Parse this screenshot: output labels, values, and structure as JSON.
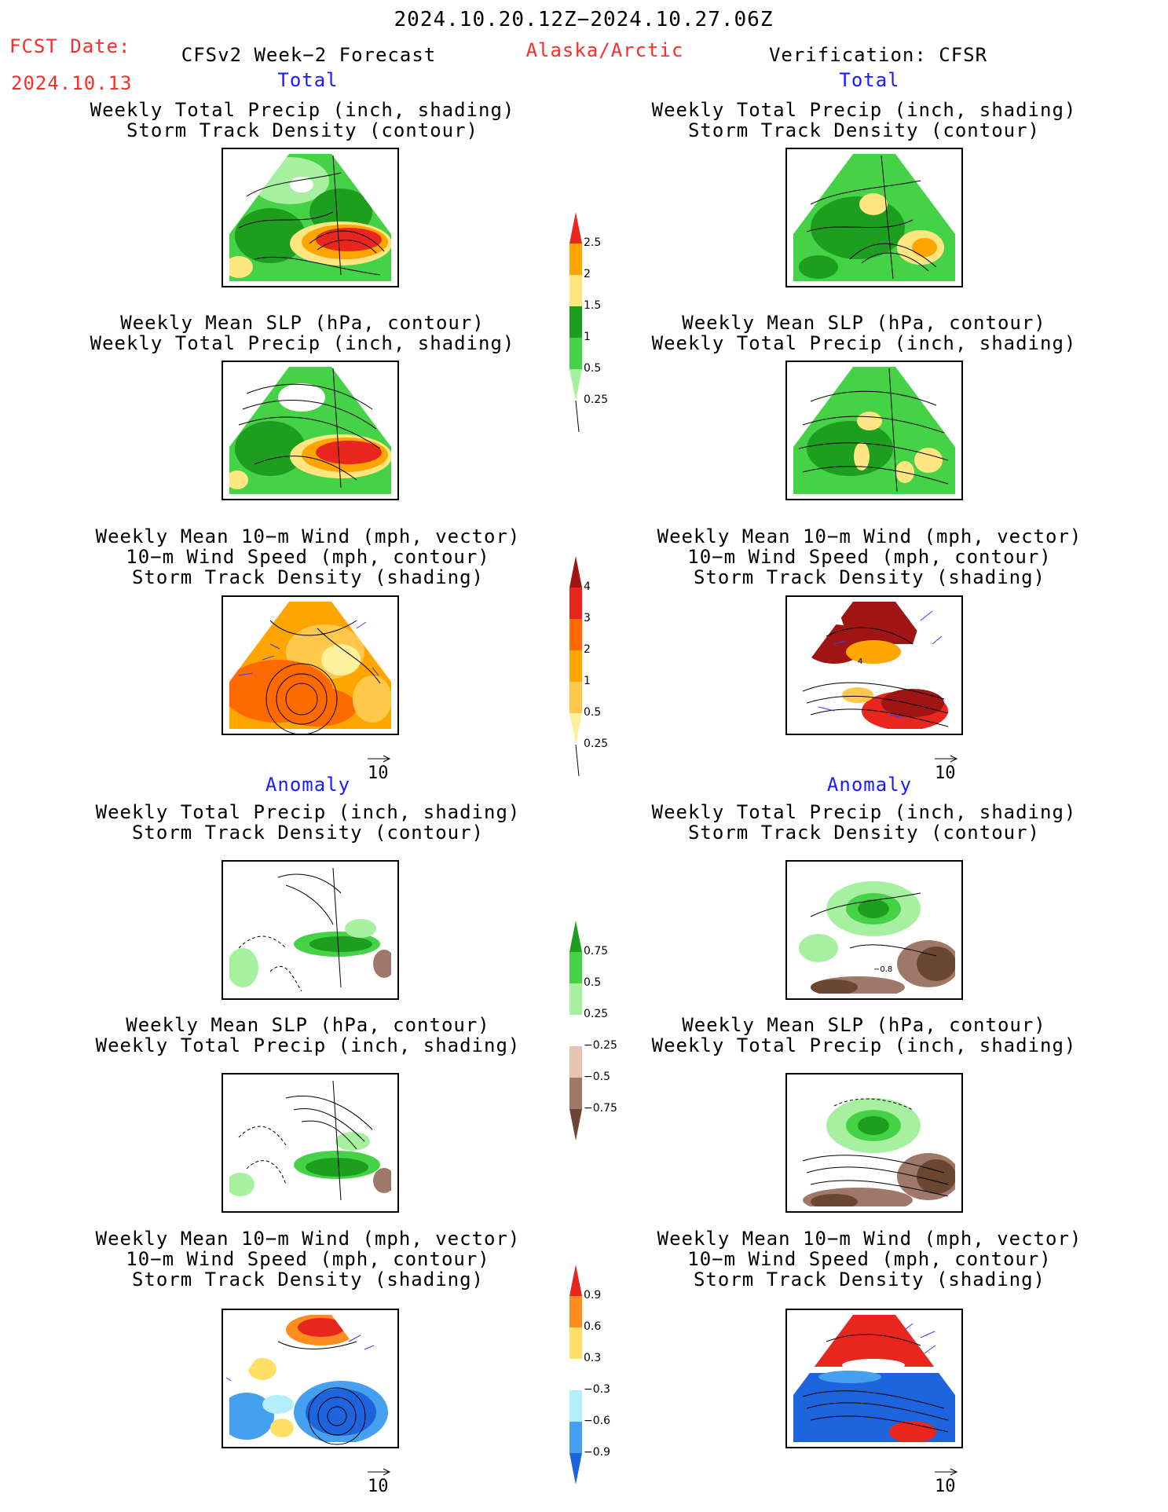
{
  "header": {
    "date_range": "2024.10.20.12Z−2024.10.27.06Z",
    "fcst_label": "FCST Date:",
    "fcst_date": "2024.10.13",
    "left_title": "CFSv2 Week−2 Forecast",
    "region": "Alaska/Arctic",
    "right_title": "Verification: CFSR"
  },
  "sections": {
    "total": "Total",
    "anomaly": "Anomaly"
  },
  "panel_titles": {
    "precip_storm": [
      "Weekly Total Precip (inch, shading)",
      "Storm Track Density (contour)"
    ],
    "slp_precip": [
      "Weekly Mean SLP (hPa, contour)",
      "Weekly Total Precip (inch, shading)"
    ],
    "wind_storm": [
      "Weekly Mean 10−m Wind (mph, vector)",
      "10−m Wind Speed (mph, contour)",
      "Storm Track Density (shading)"
    ]
  },
  "vector_key": "10",
  "colorbars": {
    "precip_total": {
      "labels": [
        "2.5",
        "2",
        "1.5",
        "1",
        "0.5",
        "0.25"
      ],
      "colors": [
        "#e8261e",
        "#ffa500",
        "#ffe680",
        "#1e9e1e",
        "#46d246",
        "#a6f0a0"
      ]
    },
    "storm_total": {
      "labels": [
        "4",
        "3",
        "2",
        "1",
        "0.5",
        "0.25"
      ],
      "colors": [
        "#a01414",
        "#e8261e",
        "#ff6a00",
        "#ffa500",
        "#ffc84a",
        "#fff0a0"
      ]
    },
    "precip_anom": {
      "labels": [
        "0.75",
        "0.5",
        "0.25",
        "−0.25",
        "−0.5",
        "−0.75"
      ],
      "colors": [
        "#1e9e1e",
        "#46d246",
        "#a6f0a0",
        "#ffffff",
        "#e6c4b4",
        "#a0786a",
        "#6b4632"
      ]
    },
    "storm_anom": {
      "labels": [
        "0.9",
        "0.6",
        "0.3",
        "−0.3",
        "−0.6",
        "−0.9"
      ],
      "colors": [
        "#e8261e",
        "#ff8c1e",
        "#ffe066",
        "#ffffff",
        "#b4eefa",
        "#46a0f0",
        "#1e64dc"
      ]
    }
  },
  "map_labels": {
    "wind_right_contour": "4",
    "precip_anom_right_contour": "−0.8"
  }
}
